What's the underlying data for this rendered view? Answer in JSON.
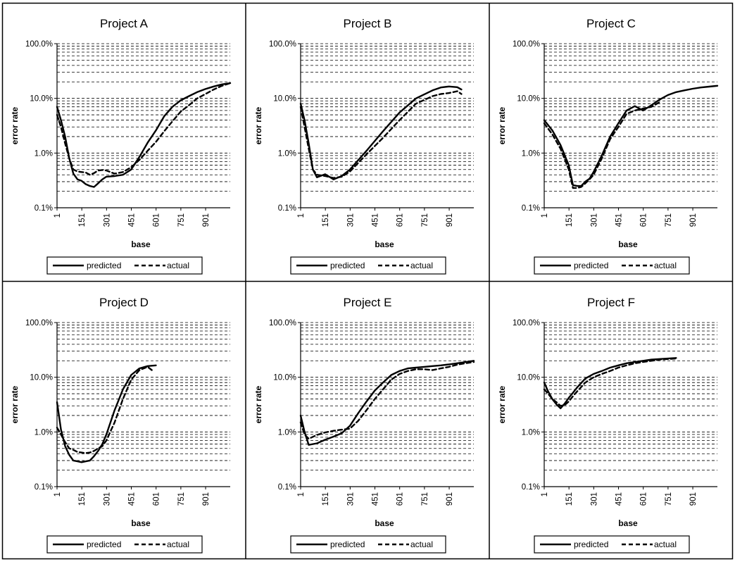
{
  "y_ticks": [
    "100.0%",
    "10.0%",
    "1.0%",
    "0.1%"
  ],
  "x_ticks": [
    "1",
    "151",
    "301",
    "451",
    "601",
    "751",
    "901"
  ],
  "xlabel": "base",
  "ylabel": "error rate",
  "legend": {
    "predicted": "predicted",
    "actual": "actual"
  },
  "chart_data": [
    {
      "type": "line",
      "title": "Project A",
      "xlabel": "base",
      "ylabel": "error rate",
      "y_scale": "log",
      "ylim": [
        0.001,
        1.0
      ],
      "xlim": [
        1,
        1050
      ],
      "grid": "horizontal",
      "legend_position": "bottom",
      "series": [
        {
          "name": "predicted",
          "x": [
            1,
            25,
            50,
            75,
            100,
            125,
            150,
            175,
            200,
            225,
            250,
            275,
            300,
            350,
            400,
            450,
            500,
            550,
            600,
            650,
            700,
            750,
            800,
            850,
            900,
            950,
            1000,
            1050
          ],
          "y": [
            0.07,
            0.04,
            0.02,
            0.008,
            0.0042,
            0.0033,
            0.0031,
            0.0027,
            0.0025,
            0.0024,
            0.0028,
            0.0033,
            0.0037,
            0.0038,
            0.004,
            0.005,
            0.0085,
            0.0155,
            0.026,
            0.047,
            0.07,
            0.092,
            0.11,
            0.13,
            0.148,
            0.165,
            0.18,
            0.19
          ]
        },
        {
          "name": "actual",
          "x": [
            1,
            25,
            50,
            75,
            100,
            125,
            150,
            175,
            200,
            225,
            250,
            275,
            300,
            350,
            400,
            450,
            500,
            550,
            600,
            650,
            700,
            750,
            800,
            850,
            900,
            950,
            1000,
            1050
          ],
          "y": [
            0.05,
            0.03,
            0.015,
            0.008,
            0.005,
            0.0046,
            0.0045,
            0.0044,
            0.004,
            0.0043,
            0.0048,
            0.0049,
            0.0048,
            0.0042,
            0.0045,
            0.0055,
            0.0075,
            0.011,
            0.016,
            0.025,
            0.038,
            0.057,
            0.075,
            0.1,
            0.12,
            0.145,
            0.17,
            0.19
          ]
        }
      ]
    },
    {
      "type": "line",
      "title": "Project B",
      "xlabel": "base",
      "ylabel": "error rate",
      "y_scale": "log",
      "ylim": [
        0.001,
        1.0
      ],
      "xlim": [
        1,
        1050
      ],
      "grid": "horizontal",
      "legend_position": "bottom",
      "series": [
        {
          "name": "predicted",
          "x": [
            1,
            25,
            50,
            75,
            100,
            150,
            200,
            250,
            300,
            400,
            500,
            600,
            700,
            800,
            850,
            900,
            950,
            975
          ],
          "y": [
            0.08,
            0.04,
            0.015,
            0.005,
            0.0036,
            0.0041,
            0.0033,
            0.0038,
            0.005,
            0.011,
            0.025,
            0.055,
            0.1,
            0.14,
            0.158,
            0.165,
            0.16,
            0.145
          ]
        },
        {
          "name": "actual",
          "x": [
            1,
            25,
            50,
            75,
            100,
            150,
            200,
            250,
            300,
            400,
            500,
            600,
            700,
            800,
            850,
            900,
            950,
            975
          ],
          "y": [
            0.07,
            0.03,
            0.012,
            0.005,
            0.004,
            0.0038,
            0.0035,
            0.0037,
            0.0046,
            0.0095,
            0.019,
            0.04,
            0.08,
            0.11,
            0.12,
            0.125,
            0.135,
            0.12
          ]
        }
      ]
    },
    {
      "type": "line",
      "title": "Project C",
      "xlabel": "base",
      "ylabel": "error rate",
      "y_scale": "log",
      "ylim": [
        0.001,
        1.0
      ],
      "xlim": [
        1,
        1050
      ],
      "grid": "horizontal",
      "legend_position": "bottom",
      "series": [
        {
          "name": "predicted",
          "x": [
            1,
            50,
            100,
            150,
            175,
            200,
            225,
            250,
            275,
            300,
            350,
            400,
            450,
            500,
            550,
            600,
            650,
            700,
            750,
            800,
            850,
            900,
            950,
            1000,
            1050
          ],
          "y": [
            0.04,
            0.026,
            0.014,
            0.006,
            0.0026,
            0.0025,
            0.0025,
            0.003,
            0.0034,
            0.0045,
            0.009,
            0.02,
            0.035,
            0.06,
            0.072,
            0.06,
            0.075,
            0.095,
            0.115,
            0.13,
            0.14,
            0.15,
            0.158,
            0.164,
            0.17
          ]
        },
        {
          "name": "actual",
          "x": [
            1,
            50,
            100,
            150,
            175,
            200,
            225,
            250,
            275,
            300,
            350,
            400,
            450,
            500,
            550,
            600,
            650,
            700
          ],
          "y": [
            0.035,
            0.022,
            0.012,
            0.005,
            0.0023,
            0.0023,
            0.0024,
            0.0028,
            0.0033,
            0.004,
            0.008,
            0.018,
            0.03,
            0.052,
            0.06,
            0.065,
            0.07,
            0.085
          ]
        }
      ]
    },
    {
      "type": "line",
      "title": "Project D",
      "xlabel": "base",
      "ylabel": "error rate",
      "y_scale": "log",
      "ylim": [
        0.001,
        1.0
      ],
      "xlim": [
        1,
        1050
      ],
      "grid": "horizontal",
      "legend_position": "bottom",
      "series": [
        {
          "name": "predicted",
          "x": [
            1,
            25,
            50,
            75,
            100,
            125,
            150,
            175,
            200,
            225,
            250,
            275,
            300,
            350,
            400,
            450,
            500,
            550,
            600
          ],
          "y": [
            0.035,
            0.011,
            0.0055,
            0.0038,
            0.003,
            0.0029,
            0.0028,
            0.0029,
            0.003,
            0.0036,
            0.0045,
            0.006,
            0.009,
            0.025,
            0.06,
            0.11,
            0.145,
            0.16,
            0.165
          ]
        },
        {
          "name": "actual",
          "x": [
            1,
            25,
            50,
            75,
            100,
            125,
            150,
            175,
            200,
            225,
            250,
            275,
            300,
            350,
            400,
            450,
            500,
            550,
            575
          ],
          "y": [
            0.012,
            0.009,
            0.0065,
            0.005,
            0.0047,
            0.0043,
            0.0042,
            0.0041,
            0.0042,
            0.0045,
            0.005,
            0.0055,
            0.007,
            0.015,
            0.04,
            0.09,
            0.135,
            0.155,
            0.135
          ]
        }
      ]
    },
    {
      "type": "line",
      "title": "Project E",
      "xlabel": "base",
      "ylabel": "error rate",
      "y_scale": "log",
      "ylim": [
        0.001,
        1.0
      ],
      "xlim": [
        1,
        1050
      ],
      "grid": "horizontal",
      "legend_position": "bottom",
      "series": [
        {
          "name": "predicted",
          "x": [
            1,
            25,
            50,
            100,
            150,
            200,
            250,
            300,
            350,
            400,
            450,
            500,
            550,
            600,
            650,
            700,
            750,
            800,
            850,
            900,
            950,
            1000,
            1050
          ],
          "y": [
            0.02,
            0.01,
            0.0058,
            0.0062,
            0.0072,
            0.0082,
            0.0095,
            0.013,
            0.022,
            0.036,
            0.057,
            0.08,
            0.11,
            0.13,
            0.145,
            0.15,
            0.155,
            0.16,
            0.165,
            0.172,
            0.18,
            0.19,
            0.2
          ]
        },
        {
          "name": "actual",
          "x": [
            1,
            25,
            50,
            100,
            150,
            200,
            250,
            300,
            350,
            400,
            450,
            500,
            550,
            600,
            650,
            700,
            750,
            800,
            850,
            900,
            950,
            1000,
            1050
          ],
          "y": [
            0.015,
            0.009,
            0.0075,
            0.0088,
            0.0098,
            0.0105,
            0.011,
            0.0115,
            0.016,
            0.025,
            0.04,
            0.06,
            0.09,
            0.115,
            0.13,
            0.14,
            0.14,
            0.135,
            0.145,
            0.155,
            0.17,
            0.18,
            0.19
          ]
        }
      ]
    },
    {
      "type": "line",
      "title": "Project F",
      "xlabel": "base",
      "ylabel": "error rate",
      "y_scale": "log",
      "ylim": [
        0.001,
        1.0
      ],
      "xlim": [
        1,
        1050
      ],
      "grid": "horizontal",
      "legend_position": "bottom",
      "series": [
        {
          "name": "predicted",
          "x": [
            1,
            25,
            50,
            75,
            100,
            125,
            150,
            175,
            200,
            250,
            300,
            350,
            400,
            450,
            500,
            550,
            600,
            650,
            700,
            750,
            800
          ],
          "y": [
            0.08,
            0.055,
            0.04,
            0.032,
            0.027,
            0.033,
            0.042,
            0.052,
            0.065,
            0.095,
            0.115,
            0.13,
            0.15,
            0.165,
            0.18,
            0.19,
            0.2,
            0.21,
            0.215,
            0.22,
            0.225
          ]
        },
        {
          "name": "actual",
          "x": [
            1,
            25,
            50,
            75,
            100,
            125,
            150,
            175,
            200,
            250,
            300,
            350,
            400,
            450,
            500,
            550,
            600,
            650,
            700,
            750,
            800
          ],
          "y": [
            0.06,
            0.05,
            0.04,
            0.035,
            0.03,
            0.031,
            0.036,
            0.045,
            0.055,
            0.08,
            0.1,
            0.115,
            0.13,
            0.15,
            0.165,
            0.18,
            0.19,
            0.2,
            0.21,
            0.215,
            0.22
          ]
        }
      ]
    }
  ]
}
